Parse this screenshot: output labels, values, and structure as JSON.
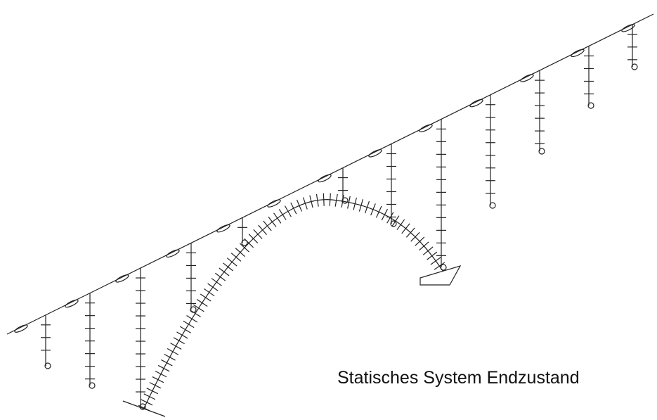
{
  "caption": "Statisches System Endzustand"
}
